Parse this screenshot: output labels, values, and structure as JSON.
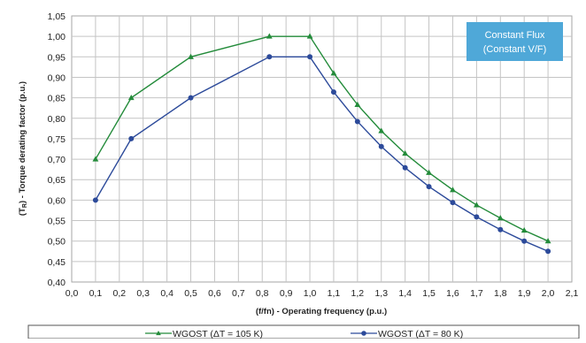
{
  "chart_data": {
    "type": "line",
    "xlabel": "(f/fn) - Operating frequency (p.u.)",
    "ylabel_main": "(T",
    "ylabel_sub": "R",
    "ylabel_rest": ") - Torque derating factor (p.u.)",
    "xlim": [
      0.0,
      2.1
    ],
    "ylim": [
      0.4,
      1.05
    ],
    "x_ticks": [
      "0,0",
      "0,1",
      "0,2",
      "0,3",
      "0,4",
      "0,5",
      "0,6",
      "0,7",
      "0,8",
      "0,9",
      "1,0",
      "1,1",
      "1,2",
      "1,3",
      "1,4",
      "1,5",
      "1,6",
      "1,7",
      "1,8",
      "1,9",
      "2,0",
      "2,1"
    ],
    "y_ticks": [
      "0,40",
      "0,45",
      "0,50",
      "0,55",
      "0,60",
      "0,65",
      "0,70",
      "0,75",
      "0,80",
      "0,85",
      "0,90",
      "0,95",
      "1,00",
      "1,05"
    ],
    "grid": true,
    "legend_position": "bottom",
    "annotation": {
      "lines": [
        "Constant Flux",
        "(Constant V/F)"
      ],
      "color": "#4fa8d8"
    },
    "series": [
      {
        "name": "WGOST (ΔT = 105 K)",
        "color": "#238b3a",
        "marker": "triangle",
        "x": [
          0.1,
          0.25,
          0.5,
          0.83,
          1.0,
          1.1,
          1.2,
          1.3,
          1.4,
          1.5,
          1.6,
          1.7,
          1.8,
          1.9,
          2.0
        ],
        "y": [
          0.7,
          0.85,
          0.95,
          1.0,
          1.0,
          0.91,
          0.833,
          0.769,
          0.714,
          0.667,
          0.625,
          0.588,
          0.556,
          0.526,
          0.5
        ]
      },
      {
        "name": "WGOST (ΔT = 80 K)",
        "color": "#2c4a9a",
        "marker": "circle",
        "x": [
          0.1,
          0.25,
          0.5,
          0.83,
          1.0,
          1.1,
          1.2,
          1.3,
          1.4,
          1.5,
          1.6,
          1.7,
          1.8,
          1.9,
          2.0
        ],
        "y": [
          0.6,
          0.75,
          0.85,
          0.95,
          0.95,
          0.864,
          0.792,
          0.731,
          0.679,
          0.633,
          0.594,
          0.559,
          0.528,
          0.5,
          0.475
        ]
      }
    ]
  }
}
